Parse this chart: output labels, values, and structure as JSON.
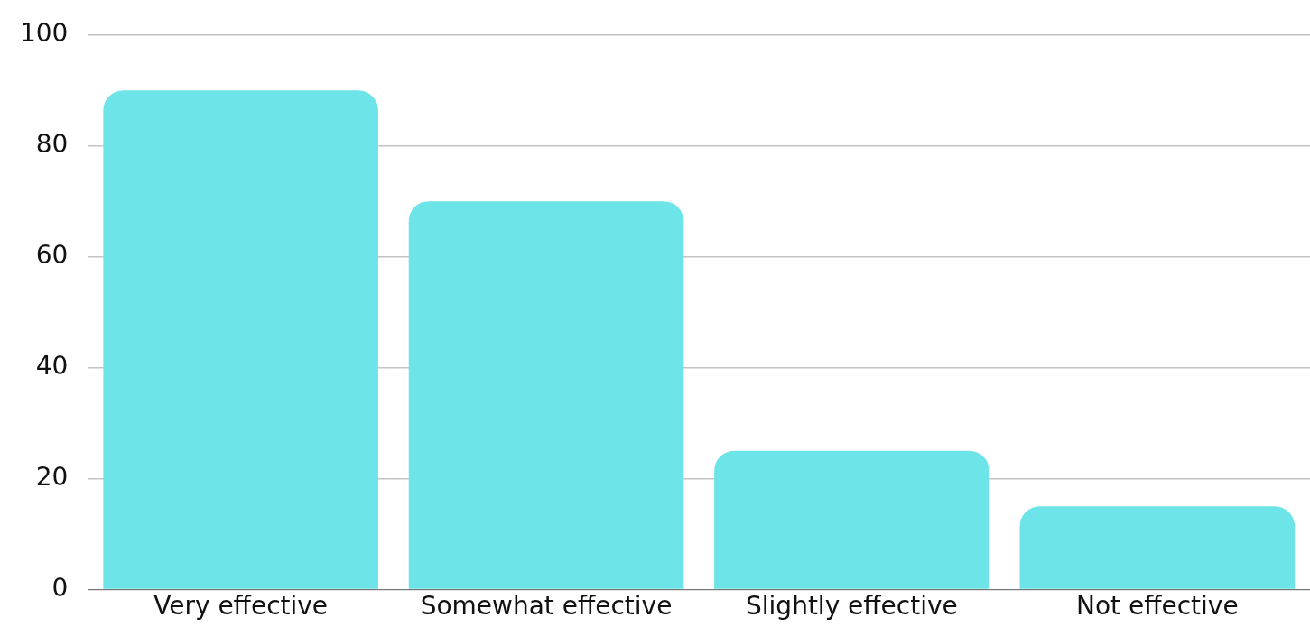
{
  "chart_data": {
    "type": "bar",
    "categories": [
      "Very effective",
      "Somewhat effective",
      "Slightly effective",
      "Not effective"
    ],
    "values": [
      90,
      70,
      25,
      15
    ],
    "color": "#6ce4e8",
    "ylim": [
      0,
      100
    ],
    "yticks": [
      0,
      20,
      40,
      60,
      80,
      100
    ],
    "grid": "y",
    "legend": false
  }
}
